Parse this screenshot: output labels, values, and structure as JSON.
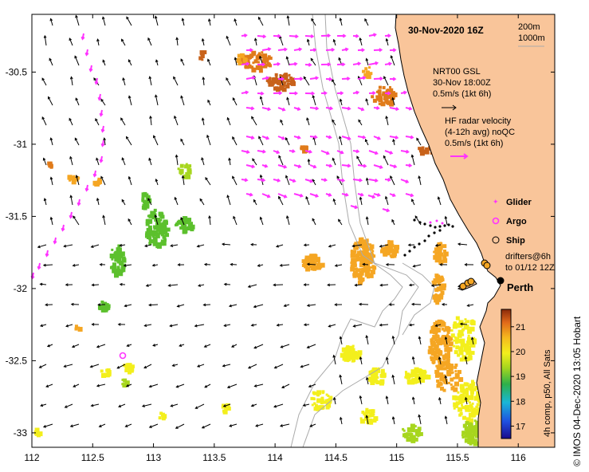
{
  "title": "30-Nov-2020 16Z",
  "isobaths": {
    "first": "200m",
    "second": "1000m"
  },
  "gsl": {
    "line1": "NRT00 GSL",
    "line2": "30-Nov 18:00Z",
    "line3": "0.5m/s (1kt 6h)"
  },
  "hf_radar": {
    "line1": "HF radar velocity",
    "line2": "(4-12h avg) noQC",
    "line3": "0.5m/s (1kt 6h)"
  },
  "legend": {
    "glider": "Glider",
    "argo": "Argo",
    "ship": "Ship",
    "drifters_line1": "drifters@6h",
    "drifters_line2": "to 01/12 12Z"
  },
  "place": "Perth",
  "credit": "© IMOS 04-Dec-2020 13:05 Hobart",
  "colorbar": {
    "label": "4h comp, p50, All Sats",
    "ticks": [
      "17",
      "18",
      "19",
      "20",
      "21"
    ],
    "min": 16.5,
    "max": 21.7
  },
  "axes": {
    "x_ticks": [
      "112",
      "112.5",
      "113",
      "113.5",
      "114",
      "114.5",
      "115",
      "115.5",
      "116"
    ],
    "y_ticks": [
      "-30.5",
      "-31",
      "-31.5",
      "-32",
      "-32.5",
      "-33"
    ],
    "lon_range": [
      112,
      116.3
    ],
    "lat_range": [
      -33.1,
      -30.1
    ]
  },
  "colors": {
    "land": "#f9c59a",
    "vector_magenta": "#ff33ff",
    "isobath": "#aaaaaa",
    "arrow": "#000000"
  }
}
